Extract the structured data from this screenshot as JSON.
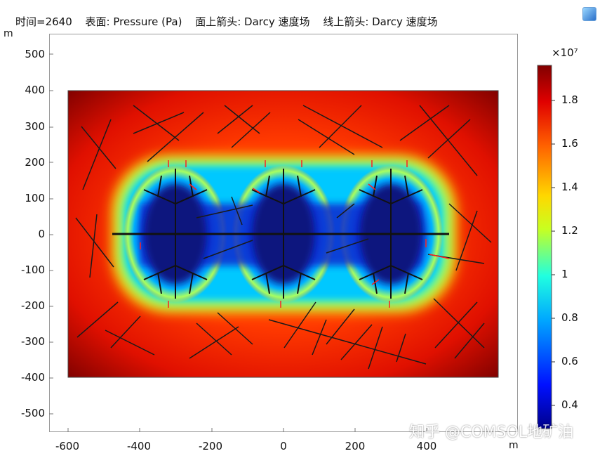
{
  "header": {
    "time_label": "时间=2640",
    "surface_label": "表面: Pressure (Pa)",
    "surface_arrow_label": "面上箭头: Darcy 速度场",
    "line_arrow_label": "线上箭头: Darcy 速度场"
  },
  "icons": {
    "corner": "app-corner-icon"
  },
  "axes": {
    "y_unit": "m",
    "x_unit": "m",
    "y_ticks": [
      "500",
      "400",
      "300",
      "200",
      "100",
      "0",
      "-100",
      "-200",
      "-300",
      "-400",
      "-500"
    ],
    "x_ticks": [
      "-600",
      "-400",
      "-200",
      "0",
      "200",
      "400"
    ]
  },
  "colorbar": {
    "exponent": "×10⁷",
    "ticks": [
      "1.8",
      "1.6",
      "1.4",
      "1.2",
      "1",
      "0.8",
      "0.6",
      "0.4"
    ]
  },
  "watermark": "知乎 @COMSOL地矿油",
  "colors": {
    "field_high": "#8b0000",
    "field_mid": "#ffd000",
    "field_low": "#0a1aa8",
    "fracture": "#111111",
    "arrow": "#ff2020"
  }
}
